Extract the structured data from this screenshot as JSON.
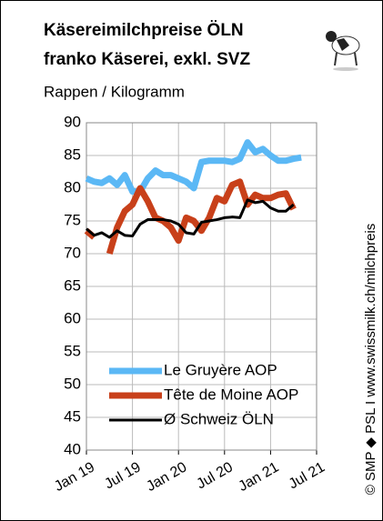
{
  "chart_data": {
    "type": "line",
    "title": "Käsereimilchpreise  ÖLN",
    "subtitle": "franko Käserei, exkl. SVZ",
    "y_label": "Rappen / Kilogramm",
    "source": "© SMP ◆ PSL I  www.swissmilk.ch/milchpreis",
    "categories": [
      "Jan 19",
      null,
      null,
      null,
      null,
      null,
      "Jul 19",
      null,
      null,
      null,
      null,
      null,
      "Jan 20",
      null,
      null,
      null,
      null,
      null,
      "Jul 20",
      null,
      null,
      null,
      null,
      null,
      "Jan 21",
      null,
      null,
      null,
      null,
      null,
      "Jul 21"
    ],
    "series": [
      {
        "name": "Le Gruyère AOP",
        "color": "#5bb8f5",
        "values": [
          81.5,
          81,
          80.8,
          81.5,
          80.5,
          82,
          79.5,
          79.5,
          81.5,
          82.7,
          82,
          82,
          81.5,
          81,
          80,
          84,
          84.2,
          84.2,
          84.2,
          84,
          84.5,
          87,
          85.5,
          86,
          85,
          84.2,
          84.2,
          84.5,
          84.7,
          null,
          null
        ]
      },
      {
        "name": "Tête de Moine AOP",
        "color": "#c8401a",
        "values": [
          73.5,
          72.5,
          null,
          70,
          74,
          76.5,
          77.5,
          80,
          78,
          75.5,
          75,
          74,
          72,
          75.5,
          75,
          73.5,
          75.5,
          78.5,
          78,
          80.5,
          81,
          77.5,
          79,
          78.5,
          78.5,
          79,
          79.2,
          76.8,
          null,
          null,
          null
        ]
      },
      {
        "name": "Ø Schweiz ÖLN",
        "color": "#000000",
        "values": [
          73.8,
          72.8,
          73.2,
          72.5,
          73.5,
          72.8,
          72.7,
          74.5,
          75.2,
          75.2,
          75.2,
          75,
          74.5,
          73.2,
          73,
          74.8,
          75,
          75.2,
          75.5,
          75.6,
          75.5,
          78.2,
          77.8,
          78,
          77,
          76.5,
          76.5,
          77.5,
          null,
          null,
          null
        ]
      }
    ],
    "ylim": [
      40,
      90
    ],
    "yticks": [
      40,
      45,
      50,
      55,
      60,
      65,
      70,
      75,
      80,
      85,
      90
    ],
    "grid": true,
    "legend": "lower left"
  }
}
